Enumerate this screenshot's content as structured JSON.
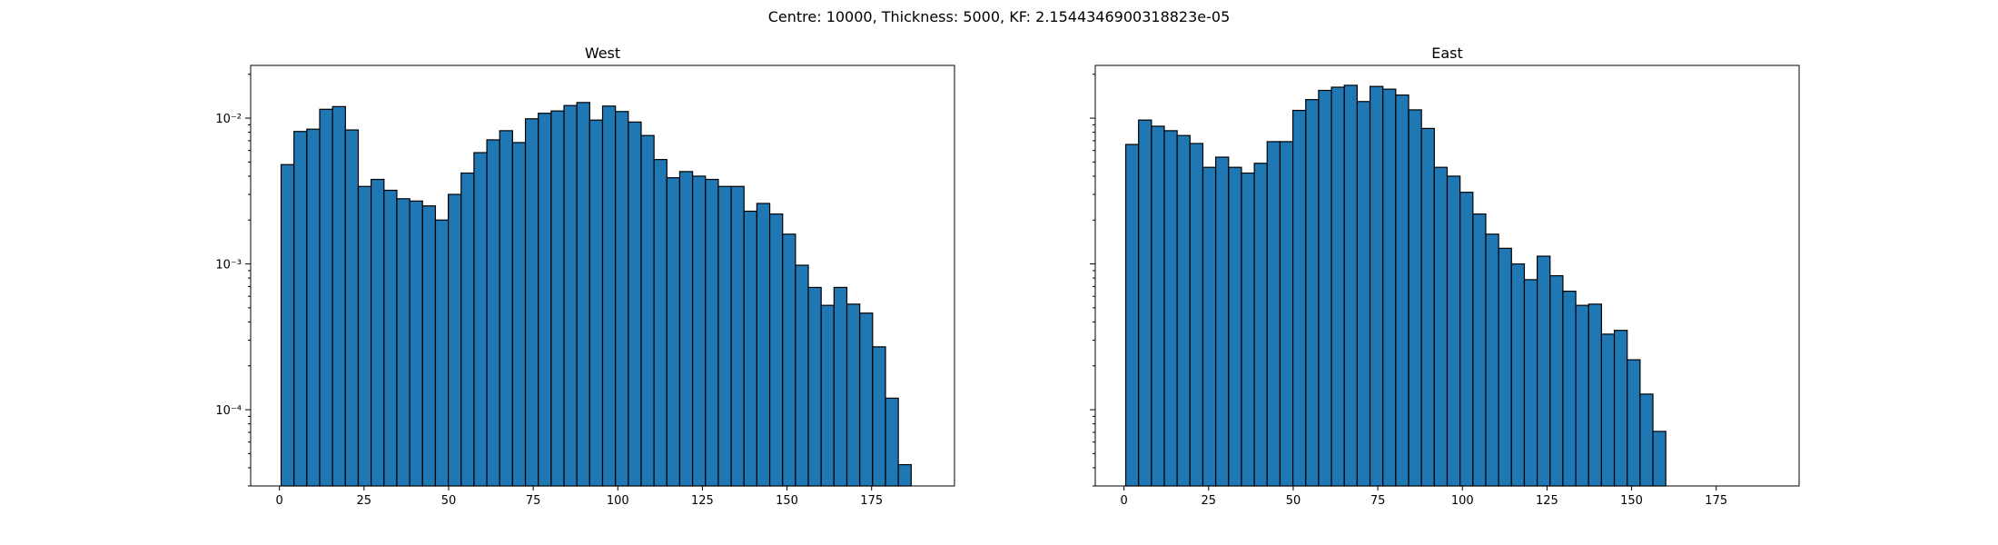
{
  "figure": {
    "suptitle": "Centre: 10000, Thickness: 5000, KF: 2.1544346900318823e-05"
  },
  "chart_data": [
    {
      "type": "bar",
      "subtype": "histogram",
      "title": "West",
      "xlabel": "",
      "ylabel": "",
      "xlim": [
        -8.5,
        199.5
      ],
      "ylim": [
        3e-05,
        0.023
      ],
      "yscale": "log",
      "xticks": [
        0,
        25,
        50,
        75,
        100,
        125,
        150,
        175
      ],
      "yticks": [
        {
          "value": 0.0001,
          "label": "10⁻⁴"
        },
        {
          "value": 0.001,
          "label": "10⁻³"
        },
        {
          "value": 0.01,
          "label": "10⁻²"
        }
      ],
      "show_y_labels": true,
      "bin_start": 0.5,
      "bin_width": 3.8,
      "values": [
        0.0048,
        0.0081,
        0.0084,
        0.0115,
        0.012,
        0.0083,
        0.0034,
        0.0038,
        0.0032,
        0.0028,
        0.0027,
        0.0025,
        0.002,
        0.003,
        0.0042,
        0.0058,
        0.0071,
        0.0082,
        0.0068,
        0.0099,
        0.0108,
        0.0112,
        0.0122,
        0.0128,
        0.0097,
        0.0121,
        0.0111,
        0.0094,
        0.0076,
        0.0052,
        0.0039,
        0.0043,
        0.004,
        0.0038,
        0.0034,
        0.0034,
        0.0023,
        0.0026,
        0.0022,
        0.0016,
        0.00098,
        0.00069,
        0.00052,
        0.00069,
        0.00053,
        0.00046,
        0.00027,
        0.00012,
        4.2e-05
      ]
    },
    {
      "type": "bar",
      "subtype": "histogram",
      "title": "East",
      "xlabel": "",
      "ylabel": "",
      "xlim": [
        -8.5,
        199.5
      ],
      "ylim": [
        3e-05,
        0.023
      ],
      "yscale": "log",
      "xticks": [
        0,
        25,
        50,
        75,
        100,
        125,
        150,
        175
      ],
      "yticks": [
        {
          "value": 0.0001,
          "label": ""
        },
        {
          "value": 0.001,
          "label": ""
        },
        {
          "value": 0.01,
          "label": ""
        }
      ],
      "show_y_labels": false,
      "bin_start": 0.5,
      "bin_width": 3.8,
      "values": [
        0.0066,
        0.0097,
        0.0088,
        0.0082,
        0.0076,
        0.0067,
        0.0046,
        0.0054,
        0.0046,
        0.0042,
        0.0049,
        0.0069,
        0.0069,
        0.0113,
        0.0134,
        0.0155,
        0.0163,
        0.0168,
        0.013,
        0.0165,
        0.0158,
        0.0144,
        0.0114,
        0.0085,
        0.0046,
        0.004,
        0.0031,
        0.0022,
        0.0016,
        0.00128,
        0.001,
        0.00078,
        0.00113,
        0.00083,
        0.00065,
        0.00052,
        0.00053,
        0.00033,
        0.00035,
        0.00022,
        0.000128,
        7.1e-05
      ]
    }
  ]
}
